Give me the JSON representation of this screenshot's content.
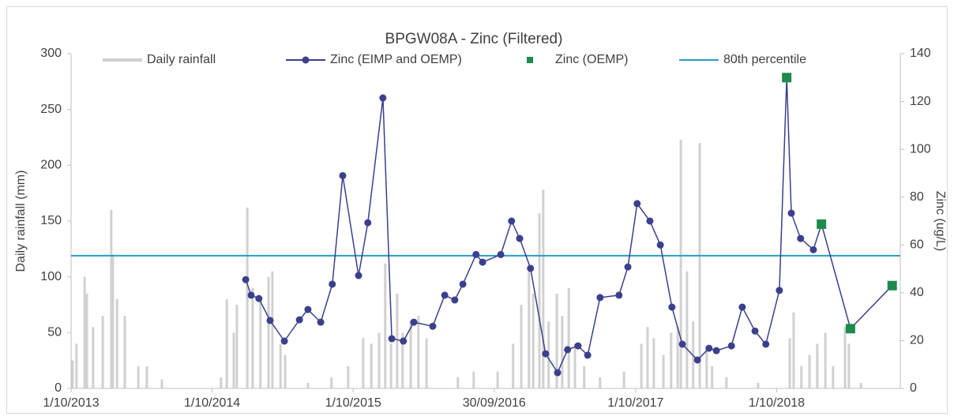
{
  "chart_data": {
    "type": "line",
    "title": "BPGW08A - Zinc (Filtered)",
    "y_label": "Daily rainfall (mm)",
    "y2_label": "Zinc (ug/L)",
    "xlim": [
      "2013-10-01",
      "2019-08-17"
    ],
    "xticks": [
      {
        "value": "2013-10-01",
        "label": "1/10/2013"
      },
      {
        "value": "2014-10-01",
        "label": "1/10/2014"
      },
      {
        "value": "2015-10-01",
        "label": "1/10/2015"
      },
      {
        "value": "2016-09-30",
        "label": "30/09/2016"
      },
      {
        "value": "2017-10-01",
        "label": "1/10/2017"
      },
      {
        "value": "2018-10-01",
        "label": "1/10/2018"
      }
    ],
    "ylim": [
      0,
      300
    ],
    "yticks": [
      0,
      50,
      100,
      150,
      200,
      250,
      300
    ],
    "y2lim": [
      0,
      140
    ],
    "y2ticks": [
      0,
      20,
      40,
      60,
      80,
      100,
      120,
      140
    ],
    "legend": "top",
    "series": [
      {
        "name": "Daily rainfall",
        "type": "bar",
        "color": "#d0d0d0",
        "x": [
          "2013-10-05",
          "2013-10-15",
          "2013-11-05",
          "2013-11-11",
          "2013-11-27",
          "2013-12-22",
          "2014-01-13",
          "2014-01-17",
          "2014-01-28",
          "2014-02-17",
          "2014-03-24",
          "2014-04-15",
          "2014-05-24",
          "2014-10-24",
          "2014-11-08",
          "2014-11-26",
          "2014-12-04",
          "2014-12-31",
          "2015-01-14",
          "2015-02-03",
          "2015-02-24",
          "2015-03-06",
          "2015-03-27",
          "2015-04-08",
          "2015-06-06",
          "2015-08-06",
          "2015-09-18",
          "2015-10-27",
          "2015-11-17",
          "2015-12-07",
          "2015-12-23",
          "2016-01-07",
          "2016-01-23",
          "2016-02-06",
          "2016-02-27",
          "2016-03-18",
          "2016-04-08",
          "2016-06-28",
          "2016-08-08",
          "2016-10-09",
          "2016-11-18",
          "2016-12-09",
          "2016-12-29",
          "2017-01-09",
          "2017-01-25",
          "2017-02-04",
          "2017-02-18",
          "2017-03-11",
          "2017-03-25",
          "2017-04-11",
          "2017-04-27",
          "2017-05-21",
          "2017-07-01",
          "2017-09-01",
          "2017-10-16",
          "2017-11-01",
          "2017-11-17",
          "2017-12-12",
          "2018-01-01",
          "2018-01-18",
          "2018-01-26",
          "2018-02-11",
          "2018-02-27",
          "2018-03-16",
          "2018-04-03",
          "2018-04-17",
          "2018-05-24",
          "2018-08-14",
          "2018-11-04",
          "2018-11-14",
          "2018-12-04",
          "2018-12-25",
          "2019-01-14",
          "2019-02-04",
          "2019-02-24",
          "2019-03-27",
          "2019-04-06",
          "2019-05-07"
        ],
        "values": [
          25,
          40,
          100,
          85,
          55,
          65,
          160,
          120,
          80,
          65,
          20,
          20,
          8,
          10,
          80,
          50,
          75,
          162,
          90,
          80,
          100,
          105,
          40,
          30,
          5,
          10,
          20,
          45,
          40,
          50,
          112,
          40,
          85,
          50,
          60,
          65,
          45,
          10,
          15,
          15,
          40,
          75,
          105,
          85,
          157,
          178,
          60,
          85,
          65,
          90,
          40,
          20,
          10,
          15,
          40,
          55,
          45,
          30,
          50,
          55,
          223,
          105,
          60,
          220,
          35,
          20,
          10,
          5,
          45,
          68,
          20,
          30,
          40,
          50,
          20,
          55,
          40,
          5
        ]
      },
      {
        "name": "Zinc (EIMP and OEMP)",
        "type": "line",
        "axis": "y2",
        "color": "#3b3f8c",
        "x": [
          "2014-12-27",
          "2015-01-10",
          "2015-01-30",
          "2015-02-28",
          "2015-04-06",
          "2015-05-15",
          "2015-06-06",
          "2015-07-09",
          "2015-08-08",
          "2015-09-04",
          "2015-10-15",
          "2015-11-08",
          "2015-12-17",
          "2016-01-09",
          "2016-02-08",
          "2016-03-06",
          "2016-04-24",
          "2016-05-25",
          "2016-06-20",
          "2016-07-11",
          "2016-08-14",
          "2016-08-31",
          "2016-10-17",
          "2016-11-14",
          "2016-12-05",
          "2017-01-02",
          "2017-02-10",
          "2017-03-13",
          "2017-04-08",
          "2017-05-05",
          "2017-05-30",
          "2017-07-01",
          "2017-08-19",
          "2017-09-11",
          "2017-10-05",
          "2017-11-07",
          "2017-12-04",
          "2018-01-03",
          "2018-01-30",
          "2018-03-10",
          "2018-04-09",
          "2018-04-28",
          "2018-06-06",
          "2018-07-04",
          "2018-08-06",
          "2018-09-03",
          "2018-10-08",
          "2018-10-27",
          "2018-11-08",
          "2018-12-02",
          "2019-01-04",
          "2019-01-25",
          "2019-04-10",
          "2019-07-27"
        ],
        "values": [
          45.5,
          39,
          37.6,
          28.4,
          19.8,
          28.7,
          33,
          27.7,
          43.6,
          89,
          47.2,
          69.3,
          121.5,
          20.8,
          19.8,
          27.7,
          26,
          39,
          37,
          43.6,
          56,
          52.8,
          56,
          70,
          62.7,
          50.2,
          14.5,
          6.6,
          16.2,
          17.8,
          13.9,
          38,
          39,
          50.8,
          77.3,
          70,
          60,
          34,
          18.5,
          11.9,
          16.8,
          15.8,
          17.8,
          34,
          24,
          18.5,
          41,
          130,
          73.3,
          62.7,
          58,
          68.7,
          25,
          43
        ]
      },
      {
        "name": "Zinc (OEMP)",
        "type": "scatter",
        "axis": "y2",
        "color": "#1e8a4c",
        "x": [
          "2018-10-27",
          "2019-01-25",
          "2019-04-10",
          "2019-07-27"
        ],
        "values": [
          130,
          68.7,
          25,
          43
        ]
      },
      {
        "name": "80th percentile",
        "type": "hline",
        "axis": "y2",
        "color": "#2a9cc4",
        "value": 55.5
      }
    ]
  }
}
